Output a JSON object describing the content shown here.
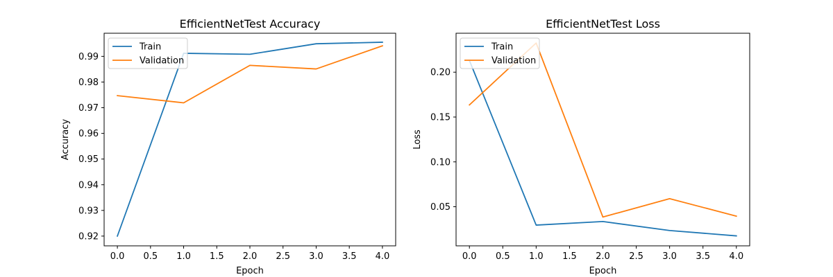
{
  "chart_data": [
    {
      "type": "line",
      "title": "EfficientNetTest Accuracy",
      "xlabel": "Epoch",
      "ylabel": "Accuracy",
      "x": [
        0,
        1,
        2,
        3,
        4
      ],
      "xlim": [
        -0.2,
        4.2
      ],
      "ylim": [
        0.9162,
        0.999
      ],
      "xticks": [
        "0.0",
        "0.5",
        "1.0",
        "1.5",
        "2.0",
        "2.5",
        "3.0",
        "3.5",
        "4.0"
      ],
      "yticks": [
        "0.92",
        "0.93",
        "0.94",
        "0.95",
        "0.96",
        "0.97",
        "0.98",
        "0.99"
      ],
      "legend": "top-left",
      "series": [
        {
          "name": "Train",
          "color": "#1f77b4",
          "values": [
            0.92,
            0.9912,
            0.9908,
            0.9949,
            0.9955
          ]
        },
        {
          "name": "Validation",
          "color": "#ff7f0e",
          "values": [
            0.9747,
            0.9719,
            0.9865,
            0.9851,
            0.9941
          ]
        }
      ]
    },
    {
      "type": "line",
      "title": "EfficientNetTest Loss",
      "xlabel": "Epoch",
      "ylabel": "Loss",
      "x": [
        0,
        1,
        2,
        3,
        4
      ],
      "xlim": [
        -0.2,
        4.2
      ],
      "ylim": [
        0.0064,
        0.2434
      ],
      "xticks": [
        "0.0",
        "0.5",
        "1.0",
        "1.5",
        "2.0",
        "2.5",
        "3.0",
        "3.5",
        "4.0"
      ],
      "yticks": [
        "0.05",
        "0.10",
        "0.15",
        "0.20"
      ],
      "legend": "top-left",
      "series": [
        {
          "name": "Train",
          "color": "#1f77b4",
          "values": [
            0.213,
            0.0295,
            0.0335,
            0.0235,
            0.0175
          ]
        },
        {
          "name": "Validation",
          "color": "#ff7f0e",
          "values": [
            0.1635,
            0.2325,
            0.0385,
            0.059,
            0.0395
          ]
        }
      ]
    }
  ]
}
